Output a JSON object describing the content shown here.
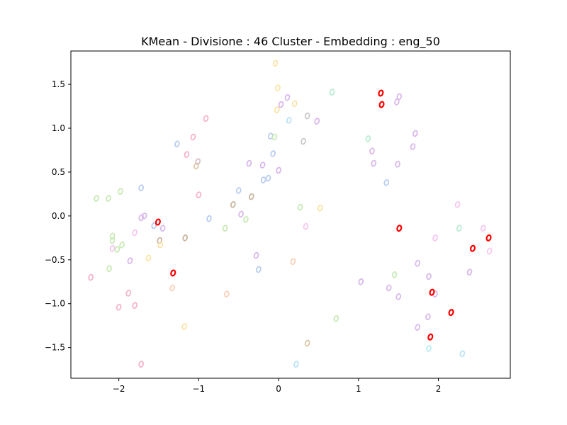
{
  "chart_data": {
    "type": "scatter",
    "title": "KMean - Divisione : 46 Cluster - Embedding : eng_50",
    "xlabel": "",
    "ylabel": "",
    "xlim": [
      -2.6,
      2.9
    ],
    "ylim": [
      -1.85,
      1.88
    ],
    "xticks": [
      -2,
      -1,
      0,
      1,
      2
    ],
    "yticks": [
      -1.5,
      -1.0,
      -0.5,
      0.0,
      0.5,
      1.0,
      1.5
    ],
    "xtick_labels": [
      "−2",
      "−1",
      "0",
      "1",
      "2"
    ],
    "ytick_labels": [
      "−1.5",
      "−1.0",
      "−0.5",
      "0.0",
      "0.5",
      "1.0",
      "1.5"
    ],
    "grid": false,
    "marker": "0",
    "highlight_color": "#ff0000",
    "series": [
      {
        "highlighted": true,
        "color": "#ff0000",
        "points": [
          [
            1.28,
            1.4
          ],
          [
            1.29,
            1.27
          ],
          [
            -1.51,
            -0.07
          ],
          [
            -1.32,
            -0.65
          ],
          [
            1.51,
            -0.14
          ],
          [
            2.63,
            -0.25
          ],
          [
            2.43,
            -0.37
          ],
          [
            1.92,
            -0.87
          ],
          [
            2.16,
            -1.1
          ],
          [
            1.9,
            -1.38
          ]
        ]
      },
      {
        "highlighted": false,
        "points": [
          [
            -0.04,
            1.74,
            "#fbe3a8"
          ],
          [
            -0.01,
            1.46,
            "#fbe3a8"
          ],
          [
            0.67,
            1.41,
            "#b9ecd3"
          ],
          [
            1.51,
            1.36,
            "#d9b8ea"
          ],
          [
            1.48,
            1.3,
            "#d9b8ea"
          ],
          [
            0.11,
            1.35,
            "#d9b8ea"
          ],
          [
            0.03,
            1.27,
            "#d9b8ea"
          ],
          [
            0.2,
            1.28,
            "#fbe3a8"
          ],
          [
            -0.02,
            1.21,
            "#fbe3a8"
          ],
          [
            -0.91,
            1.11,
            "#f5b3c8"
          ],
          [
            0.36,
            1.14,
            "#c9c9c9"
          ],
          [
            0.48,
            1.08,
            "#d9b8ea"
          ],
          [
            0.13,
            1.09,
            "#b9e3f5"
          ],
          [
            1.71,
            0.94,
            "#d9b8ea"
          ],
          [
            -1.07,
            0.9,
            "#f5b3c8"
          ],
          [
            -0.1,
            0.91,
            "#b9cdf0"
          ],
          [
            -0.05,
            0.9,
            "#c8eab5"
          ],
          [
            -1.27,
            0.82,
            "#b9cdf0"
          ],
          [
            0.31,
            0.85,
            "#c9c9c9"
          ],
          [
            1.12,
            0.88,
            "#b9ecd3"
          ],
          [
            1.68,
            0.79,
            "#d9b8ea"
          ],
          [
            1.17,
            0.74,
            "#d9b8ea"
          ],
          [
            -0.07,
            0.71,
            "#b9cdf0"
          ],
          [
            -1.15,
            0.7,
            "#f5b3c8"
          ],
          [
            -1.01,
            0.62,
            "#d8c0c8"
          ],
          [
            -1.03,
            0.57,
            "#dac8a8"
          ],
          [
            -0.37,
            0.6,
            "#d9b8ea"
          ],
          [
            -0.2,
            0.58,
            "#d9b8ea"
          ],
          [
            1.19,
            0.6,
            "#d9b8ea"
          ],
          [
            1.49,
            0.59,
            "#d9b8ea"
          ],
          [
            0.0,
            0.52,
            "#d9b8ea"
          ],
          [
            -0.13,
            0.43,
            "#b9cdf0"
          ],
          [
            -0.19,
            0.41,
            "#b9cdf0"
          ],
          [
            1.35,
            0.38,
            "#b9cdf0"
          ],
          [
            -1.72,
            0.32,
            "#b9cdf0"
          ],
          [
            -0.5,
            0.29,
            "#b9cdf0"
          ],
          [
            -1.98,
            0.28,
            "#c8eab5"
          ],
          [
            -1.0,
            0.24,
            "#f5b3c8"
          ],
          [
            -0.34,
            0.22,
            "#c9b6a0"
          ],
          [
            -2.28,
            0.2,
            "#c8eab5"
          ],
          [
            -2.13,
            0.2,
            "#c8eab5"
          ],
          [
            -0.57,
            0.13,
            "#c9b6a0"
          ],
          [
            0.27,
            0.1,
            "#c8eab5"
          ],
          [
            0.52,
            0.09,
            "#fbe3a8"
          ],
          [
            2.24,
            0.13,
            "#f5c8f0"
          ],
          [
            -0.47,
            0.02,
            "#d9b8ea"
          ],
          [
            -1.68,
            0.0,
            "#d9b8ea"
          ],
          [
            -1.72,
            -0.02,
            "#d9b8ea"
          ],
          [
            -0.87,
            -0.03,
            "#b9cdf0"
          ],
          [
            -0.41,
            -0.04,
            "#c8eab5"
          ],
          [
            -1.56,
            -0.11,
            "#b9cdf0"
          ],
          [
            -1.45,
            -0.14,
            "#d9b8ea"
          ],
          [
            0.34,
            -0.12,
            "#f5c8f0"
          ],
          [
            -0.67,
            -0.14,
            "#c8eab5"
          ],
          [
            2.26,
            -0.14,
            "#b9ecd3"
          ],
          [
            2.56,
            -0.14,
            "#f5c8f0"
          ],
          [
            -1.8,
            -0.19,
            "#f5c8f0"
          ],
          [
            -2.08,
            -0.23,
            "#c8eab5"
          ],
          [
            -2.08,
            -0.28,
            "#c8eab5"
          ],
          [
            -1.17,
            -0.25,
            "#c9b6a0"
          ],
          [
            -1.49,
            -0.28,
            "#c9b6a0"
          ],
          [
            -1.48,
            -0.33,
            "#fbe3a8"
          ],
          [
            1.96,
            -0.25,
            "#f5c8f0"
          ],
          [
            -1.96,
            -0.33,
            "#c8eab5"
          ],
          [
            -2.08,
            -0.37,
            "#f5c8f0"
          ],
          [
            -2.02,
            -0.38,
            "#c8eab5"
          ],
          [
            2.64,
            -0.4,
            "#f5c8f0"
          ],
          [
            -0.28,
            -0.45,
            "#d9b8ea"
          ],
          [
            -1.63,
            -0.48,
            "#fbe3a8"
          ],
          [
            -1.86,
            -0.51,
            "#d9b8ea"
          ],
          [
            0.18,
            -0.52,
            "#fbd0b8"
          ],
          [
            1.74,
            -0.54,
            "#d9b8ea"
          ],
          [
            -2.12,
            -0.6,
            "#c8eab5"
          ],
          [
            -0.25,
            -0.61,
            "#b9cdf0"
          ],
          [
            2.39,
            -0.64,
            "#d9b8ea"
          ],
          [
            1.45,
            -0.67,
            "#c8eab5"
          ],
          [
            1.88,
            -0.69,
            "#d9b8ea"
          ],
          [
            -2.35,
            -0.7,
            "#f5b3c8"
          ],
          [
            1.03,
            -0.75,
            "#d9b8ea"
          ],
          [
            1.38,
            -0.82,
            "#d9b8ea"
          ],
          [
            -1.33,
            -0.82,
            "#fbd0b8"
          ],
          [
            -1.88,
            -0.88,
            "#f5b3c8"
          ],
          [
            -0.65,
            -0.89,
            "#fbd0b8"
          ],
          [
            1.96,
            -0.89,
            "#d9b8ea"
          ],
          [
            1.5,
            -0.92,
            "#d9b8ea"
          ],
          [
            -1.8,
            -1.02,
            "#f5b3c8"
          ],
          [
            -2.0,
            -1.04,
            "#f5b3c8"
          ],
          [
            1.87,
            -1.15,
            "#d9b8ea"
          ],
          [
            0.72,
            -1.17,
            "#c8eab5"
          ],
          [
            -1.18,
            -1.26,
            "#fbe3a8"
          ],
          [
            1.74,
            -1.27,
            "#d9b8ea"
          ],
          [
            0.36,
            -1.45,
            "#dac8a8"
          ],
          [
            1.88,
            -1.51,
            "#b9ecf5"
          ],
          [
            2.3,
            -1.57,
            "#b9e3f5"
          ],
          [
            -1.72,
            -1.69,
            "#f5b3c8"
          ],
          [
            0.22,
            -1.69,
            "#b9e3f5"
          ]
        ]
      }
    ]
  }
}
